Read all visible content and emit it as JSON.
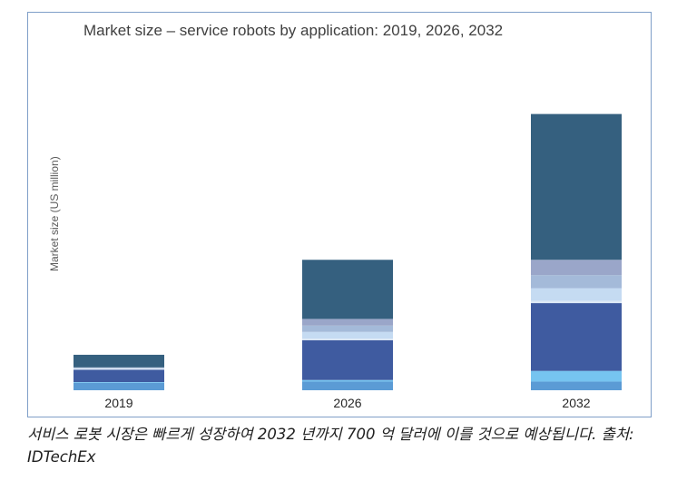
{
  "chart_data": {
    "type": "bar",
    "stacked": true,
    "title": "Market size – service robots by application: 2019, 2026, 2032",
    "ylabel": "Market size (US million)",
    "xlabel": "",
    "categories": [
      "2019",
      "2026",
      "2032"
    ],
    "ylim": [
      0,
      76000
    ],
    "grid": false,
    "legend": "none",
    "series": [
      {
        "color": "#5b9bd5",
        "values": [
          1870,
          2200,
          2200
        ]
      },
      {
        "color": "#76c4f0",
        "values": [
          200,
          400,
          2700
        ]
      },
      {
        "color": "#3f5ba0",
        "values": [
          3150,
          10100,
          17200
        ]
      },
      {
        "color": "#dce8f5",
        "values": [
          300,
          400,
          600
        ]
      },
      {
        "color": "#c5dbf2",
        "values": [
          100,
          1700,
          3200
        ]
      },
      {
        "color": "#a4bad9",
        "values": [
          80,
          1600,
          3300
        ]
      },
      {
        "color": "#9aa6c9",
        "values": [
          100,
          1700,
          3900
        ]
      },
      {
        "color": "#35607f",
        "values": [
          3200,
          15000,
          37000
        ]
      }
    ]
  },
  "caption": "서비스 로봇 시장은 빠르게 성장하여 2032 년까지 700 억 달러에 이를 것으로 예상됩니다. 출처: IDTechEx"
}
